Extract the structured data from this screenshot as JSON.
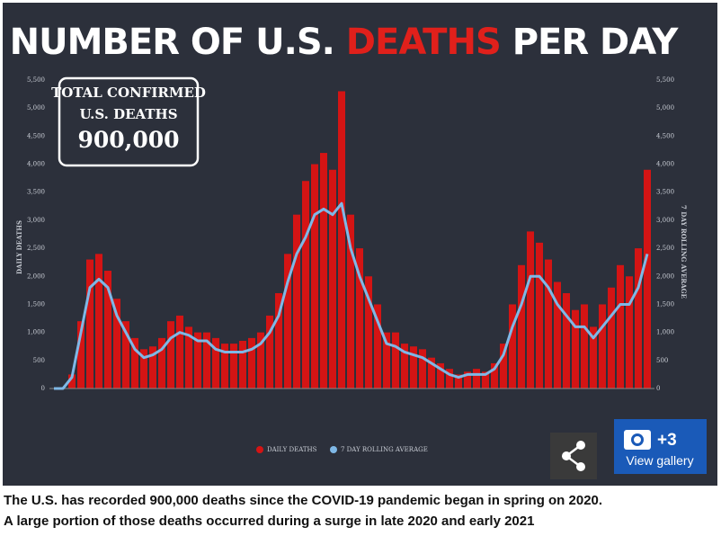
{
  "chart_data": {
    "type": "bar_line",
    "title_parts": [
      "NUMBER OF U.S.",
      "DEATHS",
      "PER DAY"
    ],
    "ylabel": "DAILY DEATHS",
    "y2label": "7 DAY ROLLING AVERAGE",
    "ylim": [
      0,
      5500
    ],
    "y2lim": [
      0,
      5500
    ],
    "yticks": [
      0,
      500,
      {
        "value": 1000,
        "label": "1,000"
      },
      {
        "value": 1500,
        "label": "1,500"
      },
      {
        "value": 2000,
        "label": "2,000"
      },
      {
        "value": 2500,
        "label": "2,500"
      },
      {
        "value": 3000,
        "label": "3,000"
      },
      {
        "value": 3500,
        "label": "3,500"
      },
      {
        "value": 4000,
        "label": "4,000"
      },
      {
        "value": 4500,
        "label": "4,500"
      },
      {
        "value": 5000,
        "label": "5,000"
      },
      {
        "value": 5500,
        "label": "5,500"
      }
    ],
    "y2ticks": [
      0,
      500,
      {
        "value": 1000,
        "label": "1,000"
      },
      {
        "value": 1500,
        "label": "1,500"
      },
      {
        "value": 2000,
        "label": "2,000"
      },
      {
        "value": 2500,
        "label": "2,500"
      },
      {
        "value": 3000,
        "label": "3,000"
      },
      {
        "value": 3500,
        "label": "3,500"
      },
      {
        "value": 4000,
        "label": "4,000"
      },
      {
        "value": 4500,
        "label": "4,500"
      },
      {
        "value": 5000,
        "label": "5,000"
      },
      {
        "value": 5500,
        "label": "5,500"
      }
    ],
    "series": [
      {
        "name": "DAILY DEATHS",
        "color": "#d41414",
        "values": [
          0,
          0,
          250,
          1200,
          2300,
          2400,
          2100,
          1600,
          1200,
          900,
          700,
          750,
          900,
          1200,
          1300,
          1100,
          1000,
          1000,
          900,
          800,
          800,
          850,
          900,
          1000,
          1300,
          1700,
          2400,
          3100,
          3700,
          4000,
          4200,
          3900,
          5300,
          3100,
          2500,
          2000,
          1500,
          1000,
          1000,
          800,
          750,
          700,
          550,
          450,
          350,
          250,
          300,
          350,
          300,
          450,
          800,
          1500,
          2200,
          2800,
          2600,
          2300,
          1900,
          1700,
          1400,
          1500,
          1100,
          1500,
          1800,
          2200,
          2000,
          2500,
          3900
        ]
      },
      {
        "name": "7 DAY ROLLING AVERAGE",
        "color": "#7fb8e6",
        "axis": "y2",
        "values": [
          0,
          0,
          200,
          1000,
          1800,
          1950,
          1800,
          1300,
          1000,
          700,
          550,
          600,
          700,
          900,
          1000,
          950,
          850,
          850,
          700,
          650,
          650,
          650,
          700,
          800,
          1000,
          1300,
          1900,
          2400,
          2700,
          3100,
          3200,
          3100,
          3300,
          2500,
          2000,
          1600,
          1200,
          800,
          750,
          650,
          600,
          550,
          450,
          350,
          250,
          200,
          250,
          250,
          250,
          350,
          600,
          1100,
          1500,
          2000,
          2000,
          1800,
          1500,
          1300,
          1100,
          1100,
          900,
          1100,
          1300,
          1500,
          1500,
          1800,
          2400
        ]
      }
    ],
    "info_box": [
      "TOTAL CONFIRMED",
      "U.S. DEATHS",
      "900,000"
    ]
  },
  "gallery": {
    "count": "+3",
    "label": "View gallery"
  },
  "caption": [
    "The U.S. has recorded 900,000 deaths since the COVID-19 pandemic began in spring on 2020.",
    "A large portion of those deaths occurred during a surge in late 2020 and early 2021"
  ]
}
